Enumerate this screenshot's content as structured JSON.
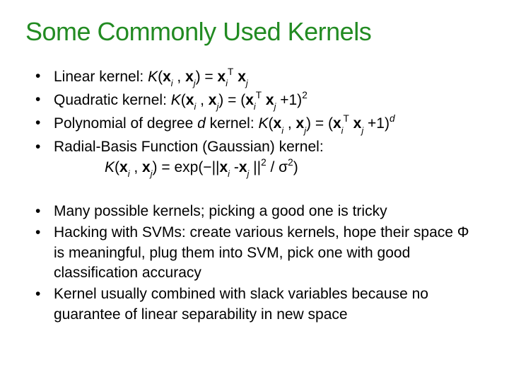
{
  "title_color": "#228b22",
  "title": "Some Commonly Used Kernels",
  "group1": {
    "b1_prefix": "Linear kernel:  ",
    "b2_prefix": "Quadratic kernel: ",
    "b3_prefix": "Polynomial of degree ",
    "b3_mid": "  kernel: ",
    "b4_text": "Radial-Basis Function (Gaussian) kernel:",
    "b4_indent_prefix": "",
    "rbf_tail": ") = exp(−||",
    "rbf_tail2": " / σ"
  },
  "group2": {
    "b1": "Many possible kernels; picking a good one is tricky",
    "b2": "Hacking with SVMs: create various kernels, hope their space Φ is meaningful, plug them into SVM, pick one with good classification accuracy",
    "b3": "Kernel usually combined with slack variables because no guarantee of linear separability in new space"
  },
  "sym": {
    "K": "K",
    "x": "x",
    "i": "i",
    "j": "j",
    "T": "T",
    "d": "d",
    "two": "2",
    "open": "(",
    "close": ")",
    "comma": " , ",
    "eq": ") = ",
    "plus1": " +1)",
    "sp": " ",
    "minus": " -",
    "bars": " ||"
  }
}
